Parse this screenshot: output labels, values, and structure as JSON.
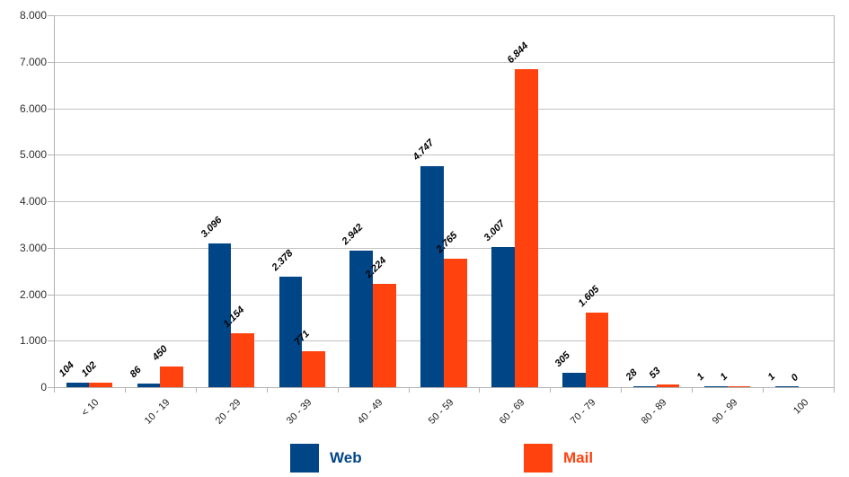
{
  "chart_data": {
    "type": "bar",
    "title": "",
    "categories": [
      "< 10",
      "10 - 19",
      "20 - 29",
      "30 - 39",
      "40 - 49",
      "50 - 59",
      "60 - 69",
      "70 - 79",
      "80 - 89",
      "90 - 99",
      "100"
    ],
    "series": [
      {
        "name": "Web",
        "color": "#004586",
        "values": [
          104,
          86,
          3096,
          2378,
          2942,
          4747,
          3007,
          305,
          28,
          1,
          1
        ],
        "value_labels": [
          "104",
          "86",
          "3.096",
          "2.378",
          "2.942",
          "4.747",
          "3.007",
          "305",
          "28",
          "1",
          "1"
        ]
      },
      {
        "name": "Mail",
        "color": "#FF420E",
        "values": [
          102,
          450,
          1154,
          771,
          2224,
          2765,
          6844,
          1605,
          53,
          1,
          0
        ],
        "value_labels": [
          "102",
          "450",
          "1.154",
          "771",
          "2.224",
          "2.765",
          "6.844",
          "1.605",
          "53",
          "1",
          "0"
        ]
      }
    ],
    "ylim": [
      0,
      8000
    ],
    "y_tick_interval": 1000,
    "y_tick_labels": [
      "8.000",
      "7.000",
      "6.000",
      "5.000",
      "4.000",
      "3.000",
      "2.000",
      "1.000",
      "0"
    ],
    "xlabel": "",
    "ylabel": "",
    "grid": true,
    "legend_position": "bottom",
    "gridline_color": "#c2c2c2",
    "axis_color": "#b3b3b3",
    "label_color": "#000000",
    "number_format": "thousands-dot"
  }
}
